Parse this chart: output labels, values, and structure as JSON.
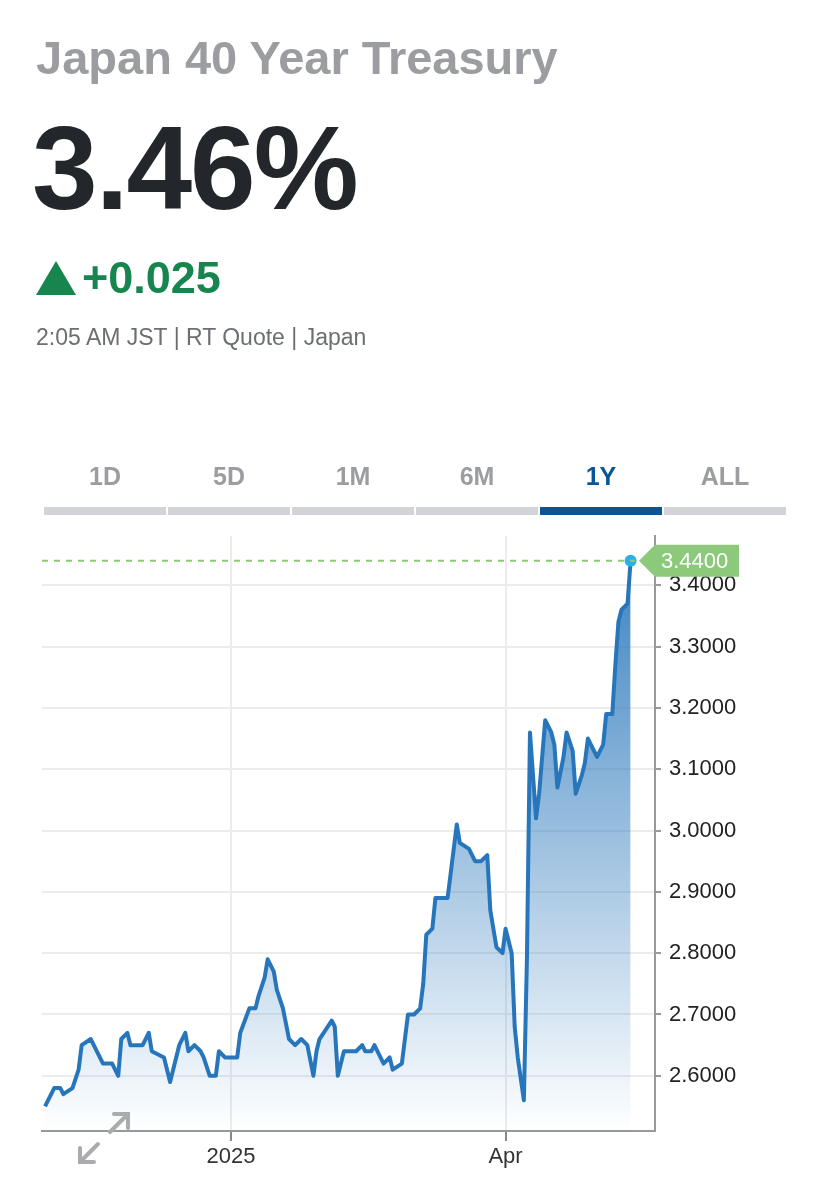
{
  "chart_data": {
    "type": "area",
    "title": "Japan 40 Year Treasury",
    "subtitle": "3.46%",
    "annotations": [
      "+0.025",
      "2:05 AM JST | RT Quote | Japan",
      "1D",
      "5D",
      "1M",
      "6M",
      "1Y",
      "ALL"
    ],
    "x": [
      "2024-11-01",
      "2024-11-04",
      "2024-11-06",
      "2024-11-07",
      "2024-11-10",
      "2024-11-12",
      "2024-11-13",
      "2024-11-16",
      "2024-11-20",
      "2024-11-23",
      "2024-11-25",
      "2024-11-26",
      "2024-11-28",
      "2024-11-29",
      "2024-12-03",
      "2024-12-05",
      "2024-12-06",
      "2024-12-10",
      "2024-12-12",
      "2024-12-15",
      "2024-12-17",
      "2024-12-18",
      "2024-12-20",
      "2024-12-22",
      "2024-12-23",
      "2024-12-25",
      "2024-12-27",
      "2024-12-28",
      "2024-12-30",
      "2025-01-03",
      "2025-01-04",
      "2025-01-07",
      "2025-01-09",
      "2025-01-10",
      "2025-01-12",
      "2025-01-13",
      "2025-01-15",
      "2025-01-16",
      "2025-01-18",
      "2025-01-20",
      "2025-01-22",
      "2025-01-24",
      "2025-01-26",
      "2025-01-28",
      "2025-01-29",
      "2025-01-30",
      "2025-02-03",
      "2025-02-04",
      "2025-02-05",
      "2025-02-07",
      "2025-02-11",
      "2025-02-13",
      "2025-02-14",
      "2025-02-16",
      "2025-02-17",
      "2025-02-20",
      "2025-02-22",
      "2025-02-23",
      "2025-02-26",
      "2025-02-27",
      "2025-02-28",
      "2025-03-02",
      "2025-03-04",
      "2025-03-05",
      "2025-03-06",
      "2025-03-08",
      "2025-03-09",
      "2025-03-11",
      "2025-03-13",
      "2025-03-14",
      "2025-03-15",
      "2025-03-16",
      "2025-03-17",
      "2025-03-20",
      "2025-03-22",
      "2025-03-24",
      "2025-03-26",
      "2025-03-27",
      "2025-03-29",
      "2025-03-31",
      "2025-04-01",
      "2025-04-03",
      "2025-04-04",
      "2025-04-05",
      "2025-04-07",
      "2025-04-08",
      "2025-04-09",
      "2025-04-11",
      "2025-04-12",
      "2025-04-14",
      "2025-04-16",
      "2025-04-17",
      "2025-04-18",
      "2025-04-20",
      "2025-04-21",
      "2025-04-23",
      "2025-04-24",
      "2025-04-26",
      "2025-04-27",
      "2025-04-28",
      "2025-04-30",
      "2025-05-01",
      "2025-05-03",
      "2025-05-04",
      "2025-05-06",
      "2025-05-07",
      "2025-05-08",
      "2025-05-09",
      "2025-05-11",
      "2025-05-12"
    ],
    "series": [
      {
        "color": "#2776bb",
        "values": [
          2.55,
          2.58,
          2.58,
          2.57,
          2.58,
          2.61,
          2.65,
          2.66,
          2.62,
          2.62,
          2.6,
          2.66,
          2.67,
          2.65,
          2.65,
          2.67,
          2.64,
          2.63,
          2.59,
          2.65,
          2.67,
          2.64,
          2.65,
          2.64,
          2.63,
          2.6,
          2.6,
          2.64,
          2.63,
          2.63,
          2.67,
          2.71,
          2.71,
          2.73,
          2.76,
          2.79,
          2.77,
          2.74,
          2.71,
          2.66,
          2.65,
          2.66,
          2.65,
          2.6,
          2.64,
          2.66,
          2.69,
          2.68,
          2.6,
          2.64,
          2.64,
          2.65,
          2.64,
          2.64,
          2.65,
          2.62,
          2.63,
          2.61,
          2.62,
          2.66,
          2.7,
          2.7,
          2.71,
          2.75,
          2.83,
          2.84,
          2.89,
          2.89,
          2.89,
          2.93,
          2.97,
          3.01,
          2.98,
          2.97,
          2.95,
          2.95,
          2.96,
          2.87,
          2.81,
          2.8,
          2.84,
          2.8,
          2.68,
          2.63,
          2.56,
          2.79,
          3.16,
          3.02,
          3.06,
          3.18,
          3.16,
          3.14,
          3.07,
          3.12,
          3.16,
          3.13,
          3.06,
          3.09,
          3.11,
          3.15,
          3.13,
          3.12,
          3.14,
          3.19,
          3.19,
          3.27,
          3.34,
          3.36,
          3.37,
          3.44
        ]
      }
    ],
    "xlim": [
      "2024-10-31",
      "2025-05-20"
    ],
    "xticks": [
      {
        "value": "2025-01-01",
        "label": "2025"
      },
      {
        "value": "2025-04-01",
        "label": "Apr"
      }
    ],
    "ylim": [
      2.51,
      3.48
    ],
    "yticks": [
      {
        "value": 2.6,
        "label": "2.6000"
      },
      {
        "value": 2.7,
        "label": "2.7000"
      },
      {
        "value": 2.8,
        "label": "2.8000"
      },
      {
        "value": 2.9,
        "label": "2.9000"
      },
      {
        "value": 3.0,
        "label": "3.0000"
      },
      {
        "value": 3.1,
        "label": "3.1000"
      },
      {
        "value": 3.2,
        "label": "3.2000"
      },
      {
        "value": 3.3,
        "label": "3.3000"
      },
      {
        "value": 3.4,
        "label": "3.4000"
      }
    ],
    "ref_lines": [
      {
        "axis": "y",
        "value": 3.44,
        "label": "3.4400",
        "color": "#8cc97a",
        "line_style": "dashed"
      }
    ],
    "grid": true,
    "legend": false,
    "marker": "none",
    "line_style": "solid"
  }
}
